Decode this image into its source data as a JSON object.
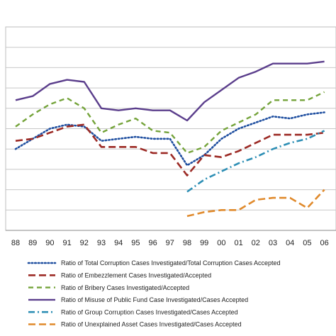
{
  "chart_data": {
    "type": "line",
    "title": "",
    "xlabel": "",
    "ylabel": "",
    "grid": true,
    "y_tick_labels_visible": false,
    "ylim": [
      0,
      10
    ],
    "legend_position": "bottom",
    "categories": [
      "88",
      "89",
      "90",
      "91",
      "92",
      "93",
      "94",
      "95",
      "96",
      "97",
      "98",
      "99",
      "00",
      "01",
      "02",
      "03",
      "04",
      "05",
      "06"
    ],
    "series": [
      {
        "name": "Ratio of  Total Corruption Cases Investigated/Total Corruption Cases Accepted",
        "color": "#1f4fa0",
        "dash": "dot",
        "values": [
          4.0,
          4.5,
          5.0,
          5.2,
          5.1,
          4.4,
          4.5,
          4.6,
          4.5,
          4.5,
          3.2,
          3.7,
          4.5,
          5.0,
          5.3,
          5.6,
          5.5,
          5.7,
          5.8
        ]
      },
      {
        "name": "Ratio of Embezzlement  Cases Investigated/Accepted",
        "color": "#9c2a25",
        "dash": "longdash",
        "values": [
          4.4,
          4.5,
          4.8,
          5.1,
          5.2,
          4.1,
          4.1,
          4.1,
          3.8,
          3.8,
          2.7,
          3.7,
          3.6,
          3.9,
          4.3,
          4.7,
          4.7,
          4.7,
          4.8
        ]
      },
      {
        "name": "Ratio  of  Bribery Cases Investigated/Accepted",
        "color": "#74a33a",
        "dash": "dash",
        "values": [
          5.1,
          5.7,
          6.2,
          6.5,
          6.0,
          4.8,
          5.2,
          5.5,
          4.9,
          4.8,
          3.8,
          4.1,
          4.9,
          5.3,
          5.7,
          6.4,
          6.4,
          6.4,
          6.8
        ]
      },
      {
        "name": "Ratio  of  Misuse of Public Fund Case Investigated/Cases Accepted",
        "color": "#5b3e8c",
        "dash": "solid",
        "values": [
          6.4,
          6.6,
          7.2,
          7.4,
          7.3,
          6.0,
          5.9,
          6.0,
          5.9,
          5.9,
          5.4,
          6.3,
          6.9,
          7.5,
          7.8,
          8.2,
          8.2,
          8.2,
          8.3
        ]
      },
      {
        "name": "Ratio of Group Corruption Cases Investigated/Cases Accepted",
        "color": "#2e8fb5",
        "dash": "dashdot",
        "values": [
          null,
          null,
          null,
          null,
          null,
          null,
          null,
          null,
          null,
          null,
          1.9,
          2.5,
          2.9,
          3.3,
          3.6,
          4.0,
          4.3,
          4.5,
          4.9
        ]
      },
      {
        "name": "Ratio of Unexplained Asset Cases Investigated/Cases Accepted",
        "color": "#e08a2c",
        "dash": "longdash",
        "values": [
          null,
          null,
          null,
          null,
          null,
          null,
          null,
          null,
          null,
          null,
          0.7,
          0.9,
          1.0,
          1.0,
          1.5,
          1.6,
          1.6,
          1.1,
          2.0
        ]
      }
    ]
  }
}
